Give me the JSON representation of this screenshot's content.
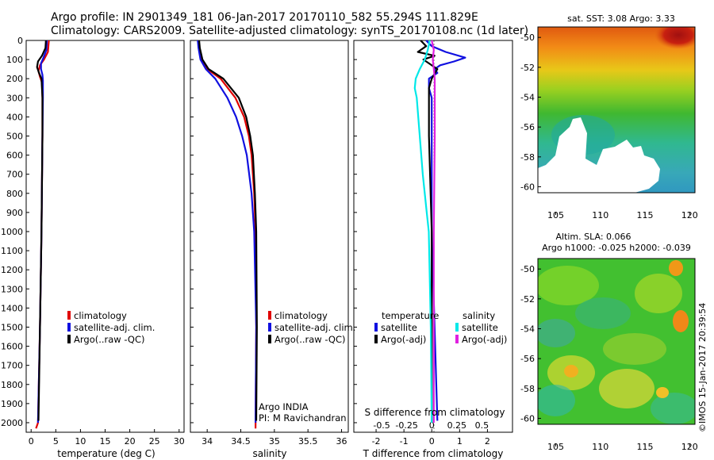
{
  "header": {
    "line1": "Argo profile: IN 2901349_181 06-Jan-2017 20170110_582 55.294S 111.829E",
    "line2": "Climatology: CARS2009. Satellite-adjusted climatology: synTS_20170108.nc (1d later)"
  },
  "colors": {
    "climatology": "#e00000",
    "satellite": "#1010e0",
    "argo": "#000000",
    "satellite_salinity": "#00e8e8",
    "argo_salinity": "#e020e0"
  },
  "chart_data": [
    {
      "type": "line",
      "id": "temperature",
      "xlabel": "temperature (deg C)",
      "xlim": [
        -1,
        31
      ],
      "xticks": [
        "0",
        "5",
        "10",
        "15",
        "20",
        "25",
        "30"
      ],
      "ylim": [
        0,
        2050
      ],
      "yticks": [
        "0",
        "100",
        "200",
        "300",
        "400",
        "500",
        "600",
        "700",
        "800",
        "900",
        "1000",
        "1100",
        "1200",
        "1300",
        "1400",
        "1500",
        "1600",
        "1700",
        "1800",
        "1900",
        "2000"
      ],
      "series": [
        {
          "name": "climatology",
          "color": "#e00000",
          "depth": [
            0,
            60,
            100,
            130,
            160,
            190,
            220,
            300,
            500,
            1000,
            1500,
            2000,
            2030
          ],
          "values": [
            3.6,
            3.4,
            2.6,
            1.8,
            1.5,
            1.8,
            2.2,
            2.3,
            2.3,
            2.1,
            1.8,
            1.4,
            1.0
          ]
        },
        {
          "name": "satellite-adj. clim.",
          "color": "#1010e0",
          "depth": [
            0,
            50,
            90,
            120,
            150,
            180,
            210,
            250,
            300,
            500,
            1000,
            1500,
            2000
          ],
          "values": [
            3.2,
            3.1,
            2.5,
            2.0,
            2.0,
            2.3,
            2.4,
            2.4,
            2.4,
            2.3,
            2.1,
            1.8,
            1.4
          ]
        },
        {
          "name": "Argo(..raw -QC)",
          "color": "#000000",
          "depth": [
            0,
            40,
            80,
            110,
            140,
            170,
            200,
            250,
            300,
            500,
            1000,
            1500,
            1990
          ],
          "values": [
            3.0,
            2.9,
            2.2,
            1.4,
            1.2,
            1.6,
            2.1,
            2.2,
            2.3,
            2.3,
            2.1,
            1.8,
            1.5
          ]
        }
      ],
      "legend": [
        {
          "label": "climatology",
          "color": "#e00000"
        },
        {
          "label": "satellite-adj. clim.",
          "color": "#1010e0"
        },
        {
          "label": "Argo(..raw -QC)",
          "color": "#000000"
        }
      ]
    },
    {
      "type": "line",
      "id": "salinity",
      "xlabel": "salinity",
      "xlim": [
        33.75,
        36.1
      ],
      "xticks": [
        "34",
        "34.5",
        "35",
        "35.5",
        "36"
      ],
      "ylim": [
        0,
        2050
      ],
      "series": [
        {
          "name": "climatology",
          "color": "#e00000",
          "depth": [
            0,
            40,
            100,
            150,
            200,
            300,
            400,
            500,
            600,
            800,
            1000,
            1500,
            2030
          ],
          "values": [
            33.87,
            33.88,
            33.92,
            34.0,
            34.2,
            34.42,
            34.55,
            34.62,
            34.66,
            34.7,
            34.72,
            34.73,
            34.72
          ]
        },
        {
          "name": "satellite-adj. clim.",
          "color": "#1010e0",
          "depth": [
            0,
            40,
            100,
            150,
            200,
            300,
            400,
            500,
            600,
            800,
            1000,
            1500,
            2000
          ],
          "values": [
            33.86,
            33.87,
            33.9,
            33.98,
            34.12,
            34.3,
            34.43,
            34.52,
            34.59,
            34.66,
            34.7,
            34.73,
            34.72
          ]
        },
        {
          "name": "Argo(..raw -QC)",
          "color": "#000000",
          "depth": [
            0,
            40,
            100,
            150,
            200,
            300,
            400,
            500,
            600,
            800,
            1000,
            1500,
            1990
          ],
          "values": [
            33.88,
            33.89,
            33.93,
            34.02,
            34.24,
            34.47,
            34.58,
            34.64,
            34.68,
            34.71,
            34.73,
            34.74,
            34.73
          ]
        }
      ],
      "legend": [
        {
          "label": "climatology",
          "color": "#e00000"
        },
        {
          "label": "satellite-adj. clim.",
          "color": "#1010e0"
        },
        {
          "label": "Argo(..raw -QC)",
          "color": "#000000"
        }
      ],
      "annotation": [
        "Argo INDIA",
        "PI: M Ravichandran"
      ]
    },
    {
      "type": "line",
      "id": "difference",
      "xlabel": "T difference from climatology",
      "xlabel_top": "S difference from climatology",
      "xlim": [
        -2.8,
        2.9
      ],
      "xticks": [
        "-2",
        "-1",
        "0",
        "1",
        "2"
      ],
      "xticks_top": [
        "-0.5",
        "-0.25",
        "0",
        "0.25",
        "0.5"
      ],
      "ylim": [
        0,
        2050
      ],
      "series": [
        {
          "name": "temperature satellite",
          "color": "#1010e0",
          "depth": [
            0,
            30,
            60,
            90,
            110,
            130,
            150,
            170,
            200,
            250,
            300,
            500,
            1000,
            1500,
            1990
          ],
          "values": [
            -0.2,
            0.0,
            0.5,
            1.2,
            0.8,
            0.3,
            0.1,
            0.2,
            -0.1,
            -0.1,
            0.0,
            0.0,
            0.0,
            0.1,
            0.2
          ]
        },
        {
          "name": "temperature Argo(-adj)",
          "color": "#000000",
          "depth": [
            0,
            30,
            60,
            80,
            100,
            120,
            150,
            200,
            250,
            300,
            500,
            1000,
            1500,
            2000
          ],
          "values": [
            -0.4,
            -0.2,
            -0.5,
            0.1,
            -0.3,
            -0.1,
            0.2,
            0.0,
            -0.1,
            -0.1,
            -0.1,
            0.0,
            0.0,
            0.0
          ]
        },
        {
          "name": "salinity satellite",
          "color": "#00e8e8",
          "depth": [
            0,
            50,
            100,
            150,
            200,
            250,
            300,
            500,
            700,
            900,
            1000,
            1500,
            2000
          ],
          "values": [
            -0.02,
            -0.04,
            -0.07,
            -0.12,
            -0.16,
            -0.17,
            -0.15,
            -0.12,
            -0.09,
            -0.05,
            -0.03,
            -0.01,
            0.0
          ]
        },
        {
          "name": "salinity Argo(-adj)",
          "color": "#e020e0",
          "depth": [
            0,
            50,
            100,
            150,
            200,
            250,
            300,
            500,
            1000,
            1500,
            2000
          ],
          "values": [
            0.0,
            0.02,
            0.01,
            0.02,
            0.03,
            0.03,
            0.03,
            0.03,
            0.02,
            0.02,
            0.02
          ]
        }
      ],
      "legend_left_title": "temperature",
      "legend_left": [
        {
          "label": "satellite",
          "color": "#1010e0"
        },
        {
          "label": "Argo(-adj)",
          "color": "#000000"
        }
      ],
      "legend_right_title": "salinity",
      "legend_right": [
        {
          "label": "satellite",
          "color": "#00e8e8"
        },
        {
          "label": "Argo(-adj)",
          "color": "#e020e0"
        }
      ]
    },
    {
      "type": "heatmap",
      "id": "sst_map",
      "title": "sat. SST: 3.08 Argo: 3.33",
      "xticks": [
        "105",
        "110",
        "115",
        "120"
      ],
      "yticks": [
        "-50",
        "-52",
        "-54",
        "-56",
        "-58",
        "-60"
      ]
    },
    {
      "type": "heatmap",
      "id": "sla_map",
      "title": "Altim. SLA: 0.066",
      "subtitle": "Argo h1000: -0.025 h2000: -0.039",
      "xticks": [
        "105",
        "110",
        "115",
        "120"
      ],
      "yticks": [
        "-50",
        "-52",
        "-54",
        "-56",
        "-58",
        "-60"
      ]
    }
  ],
  "credit": "©IMOS 15-Jan-2017 20:39:54"
}
